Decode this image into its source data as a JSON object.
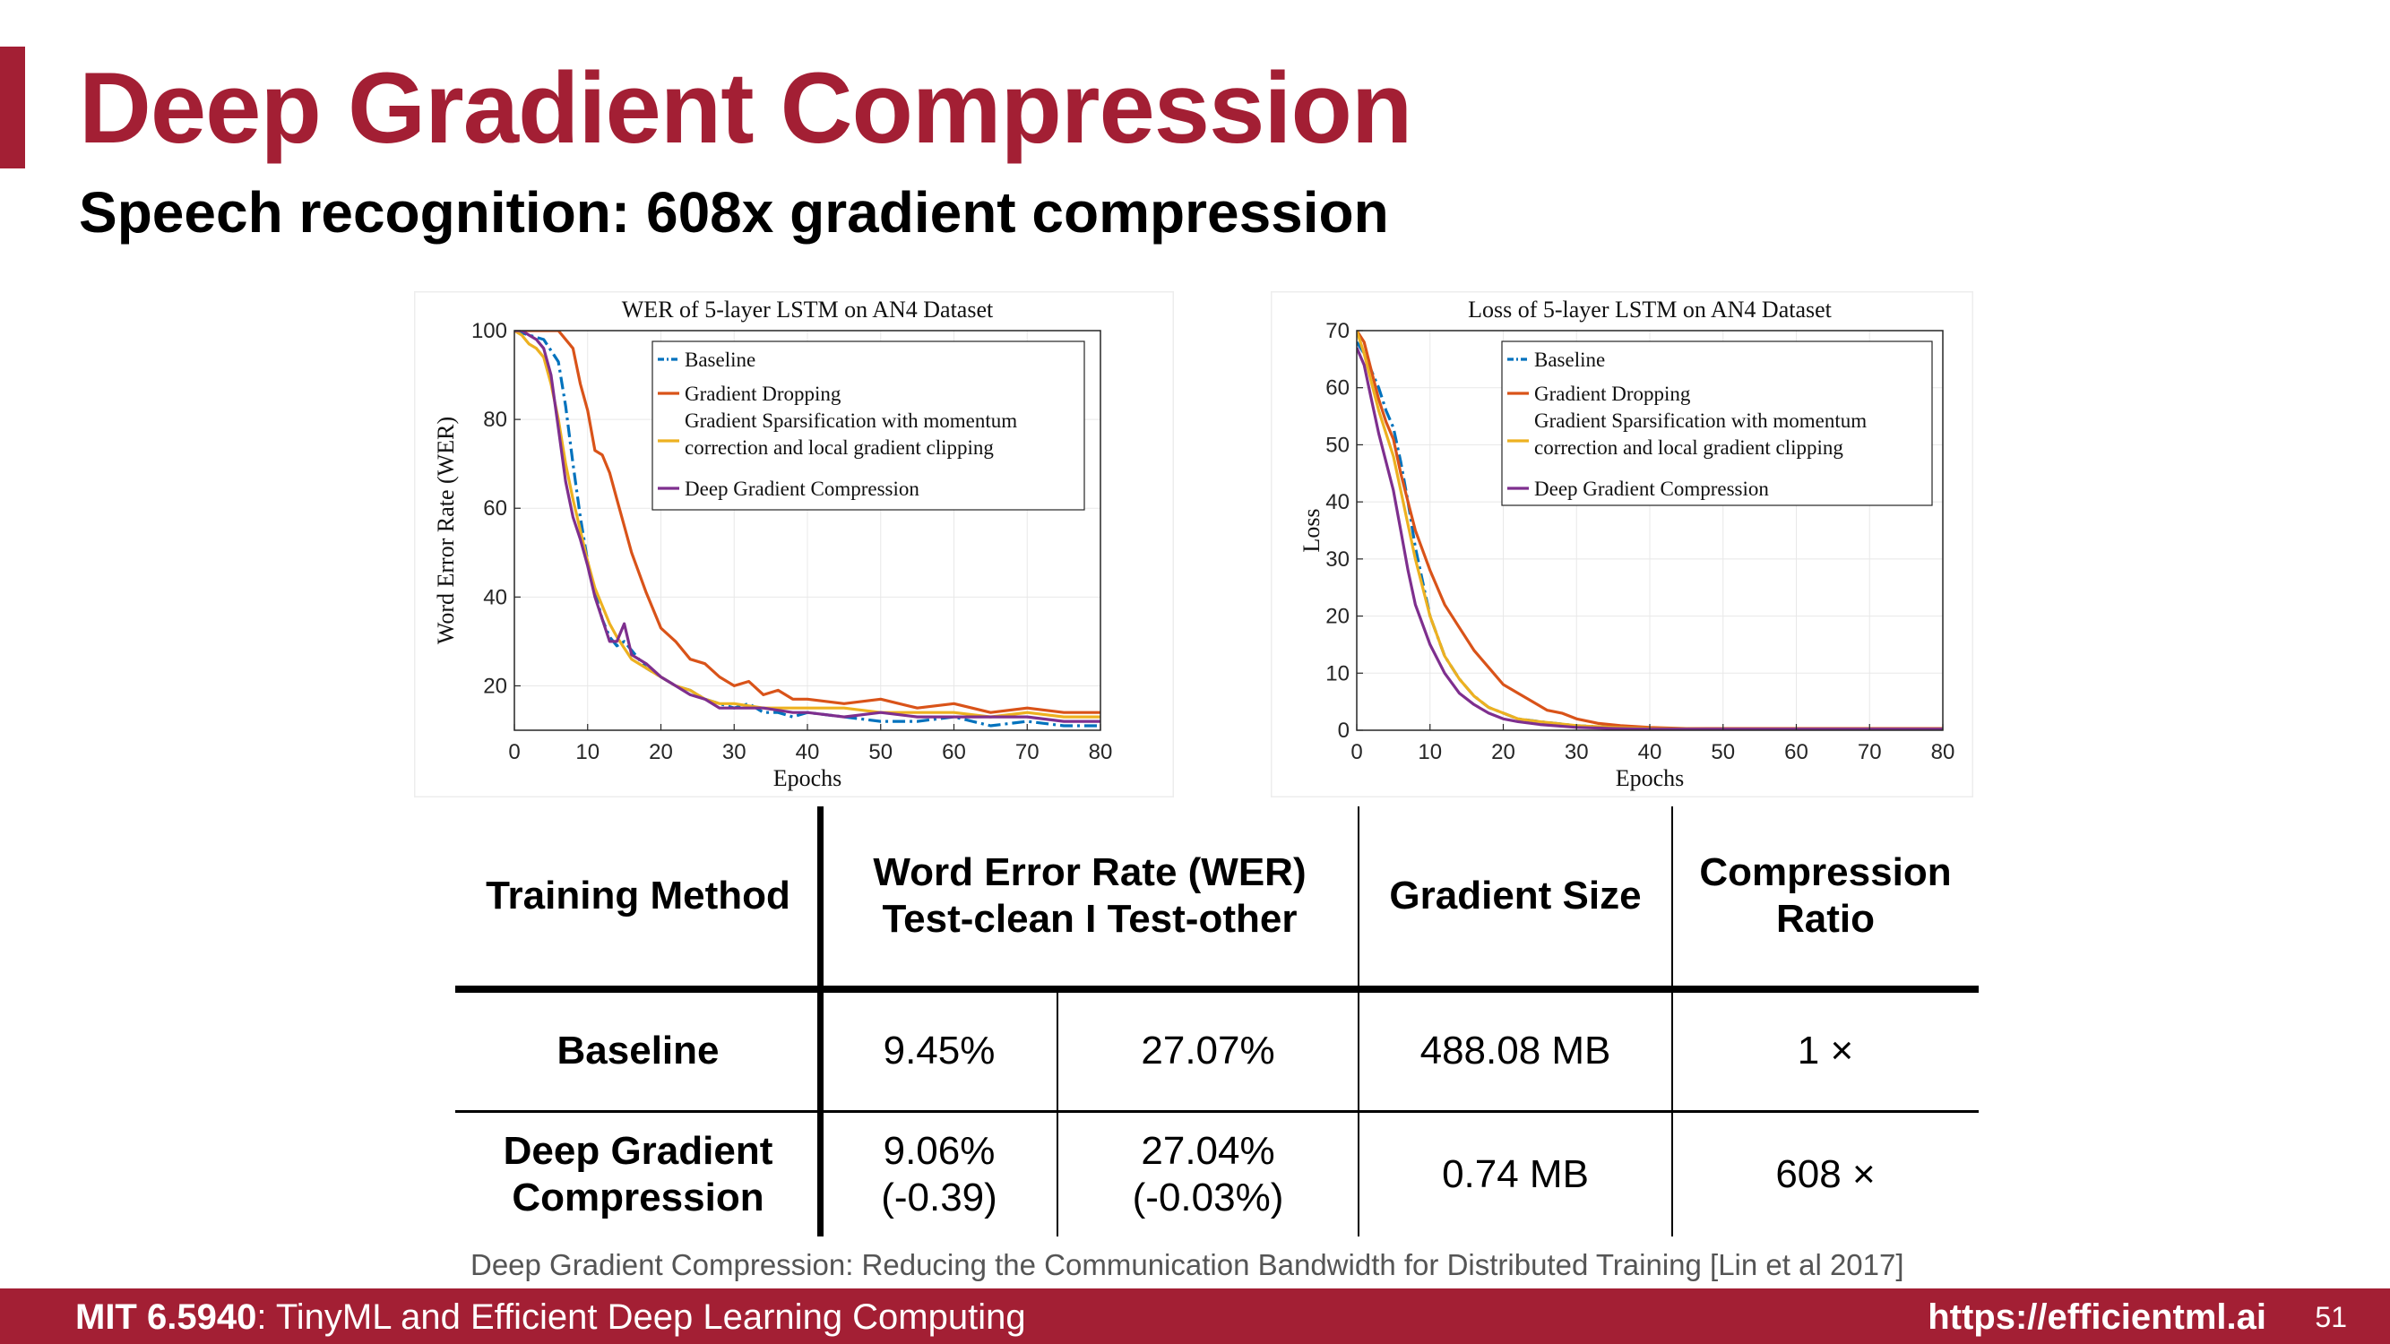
{
  "slide": {
    "title": "Deep Gradient Compression",
    "subtitle": "Speech recognition: 608x gradient compression",
    "citation": "Deep Gradient Compression: Reducing the Communication Bandwidth for Distributed Training [Lin et al 2017]",
    "footer": {
      "course_code": "MIT 6.5940",
      "course_name": ": TinyML and Efficient Deep Learning Computing",
      "url": "https://efficientml.ai",
      "page_number": "51"
    }
  },
  "colors": {
    "brand": "#a31f34",
    "baseline": "#0072bd",
    "gradient_dropping": "#d95319",
    "gradient_sparsification": "#edb120",
    "dgc": "#7e2f8e"
  },
  "table": {
    "headers": {
      "method": "Training Method",
      "wer_line1": "Word Error Rate (WER)",
      "wer_line2": "Test-clean I Test-other",
      "size": "Gradient Size",
      "ratio_line1": "Compression",
      "ratio_line2": "Ratio"
    },
    "rows": [
      {
        "method_line1": "Baseline",
        "method_line2": "",
        "clean_line1": "9.45%",
        "clean_line2": "",
        "other_line1": "27.07%",
        "other_line2": "",
        "size": "488.08 MB",
        "ratio": "1 ×"
      },
      {
        "method_line1": "Deep Gradient",
        "method_line2": "Compression",
        "clean_line1": "9.06%",
        "clean_line2": "(-0.39)",
        "other_line1": "27.04%",
        "other_line2": "(-0.03%)",
        "size": "0.74 MB",
        "ratio": "608 ×"
      }
    ]
  },
  "chart_data": [
    {
      "type": "line",
      "title": "WER of 5-layer LSTM on AN4 Dataset",
      "xlabel": "Epochs",
      "ylabel": "Word Error Rate (WER)",
      "xlim": [
        0,
        80
      ],
      "ylim": [
        10,
        100
      ],
      "xticks": [
        0,
        10,
        20,
        30,
        40,
        50,
        60,
        70,
        80
      ],
      "yticks": [
        20,
        40,
        60,
        80,
        100
      ],
      "grid": true,
      "legend_position": "top-right",
      "series": [
        {
          "name": "Baseline",
          "style": "dashdot",
          "color": "#0072bd",
          "x": [
            0,
            2,
            4,
            6,
            7,
            8,
            9,
            10,
            11,
            12,
            13,
            14,
            15,
            16,
            18,
            20,
            22,
            24,
            26,
            28,
            30,
            32,
            34,
            36,
            38,
            40,
            45,
            50,
            55,
            60,
            65,
            70,
            75,
            80
          ],
          "y": [
            100,
            99,
            98,
            93,
            83,
            70,
            58,
            48,
            41,
            35,
            31,
            29,
            30,
            28,
            24,
            22,
            20,
            19,
            17,
            16,
            15,
            16,
            14,
            14,
            13,
            14,
            13,
            12,
            12,
            13,
            11,
            12,
            11,
            11
          ]
        },
        {
          "name": "Gradient Dropping",
          "style": "solid",
          "color": "#d95319",
          "x": [
            0,
            2,
            4,
            6,
            8,
            9,
            10,
            11,
            12,
            13,
            14,
            15,
            16,
            18,
            20,
            22,
            24,
            26,
            28,
            30,
            32,
            34,
            36,
            38,
            40,
            45,
            50,
            55,
            60,
            65,
            70,
            75,
            80
          ],
          "y": [
            100,
            100,
            100,
            100,
            96,
            88,
            82,
            73,
            72,
            68,
            62,
            56,
            50,
            41,
            33,
            30,
            26,
            25,
            22,
            20,
            21,
            18,
            19,
            17,
            17,
            16,
            17,
            15,
            16,
            14,
            15,
            14,
            14
          ]
        },
        {
          "name": "Gradient Sparsification with momentum correction and local gradient clipping",
          "style": "solid",
          "color": "#edb120",
          "x": [
            0,
            1,
            2,
            3,
            4,
            5,
            6,
            7,
            8,
            9,
            10,
            11,
            12,
            13,
            14,
            16,
            18,
            20,
            22,
            24,
            26,
            28,
            30,
            34,
            38,
            40,
            45,
            50,
            55,
            60,
            65,
            70,
            75,
            80
          ],
          "y": [
            100,
            99,
            97,
            96,
            94,
            88,
            80,
            70,
            62,
            55,
            48,
            42,
            38,
            34,
            31,
            26,
            24,
            22,
            20,
            19,
            17,
            16,
            16,
            15,
            15,
            15,
            15,
            14,
            14,
            14,
            13,
            14,
            13,
            13
          ]
        },
        {
          "name": "Deep Gradient Compression",
          "style": "solid",
          "color": "#7e2f8e",
          "x": [
            0,
            1,
            2,
            3,
            4,
            5,
            6,
            7,
            8,
            9,
            10,
            11,
            12,
            13,
            14,
            15,
            16,
            18,
            20,
            22,
            24,
            26,
            28,
            30,
            34,
            38,
            40,
            45,
            50,
            55,
            60,
            65,
            70,
            75,
            80
          ],
          "y": [
            100,
            100,
            99,
            98,
            96,
            90,
            78,
            66,
            58,
            53,
            47,
            40,
            35,
            30,
            30,
            34,
            27,
            25,
            22,
            20,
            18,
            17,
            15,
            15,
            15,
            14,
            14,
            13,
            14,
            13,
            13,
            13,
            13,
            12,
            12
          ]
        }
      ]
    },
    {
      "type": "line",
      "title": "Loss of 5-layer LSTM on AN4 Dataset",
      "xlabel": "Epochs",
      "ylabel": "Loss",
      "xlim": [
        0,
        80
      ],
      "ylim": [
        0,
        70
      ],
      "xticks": [
        0,
        10,
        20,
        30,
        40,
        50,
        60,
        70,
        80
      ],
      "yticks": [
        0,
        10,
        20,
        30,
        40,
        50,
        60,
        70
      ],
      "grid": true,
      "legend_position": "top-right",
      "series": [
        {
          "name": "Baseline",
          "style": "dashdot",
          "color": "#0072bd",
          "x": [
            0,
            1,
            2,
            3,
            4,
            5,
            6,
            7,
            8,
            10,
            12,
            14,
            16,
            18,
            20,
            22,
            25,
            30,
            35,
            40,
            50,
            60,
            70,
            80
          ],
          "y": [
            68,
            66,
            63,
            60,
            56,
            53,
            47,
            40,
            32,
            20,
            13,
            9,
            6,
            4,
            3,
            2,
            1.5,
            0.8,
            0.5,
            0.3,
            0.2,
            0.2,
            0.2,
            0.2
          ]
        },
        {
          "name": "Gradient Dropping",
          "style": "solid",
          "color": "#d95319",
          "x": [
            0,
            1,
            2,
            3,
            4,
            5,
            6,
            7,
            8,
            10,
            12,
            14,
            16,
            18,
            20,
            22,
            24,
            26,
            28,
            30,
            33,
            36,
            40,
            45,
            50,
            60,
            70,
            80
          ],
          "y": [
            70,
            68,
            63,
            58,
            54,
            51,
            45,
            40,
            35,
            28,
            22,
            18,
            14,
            11,
            8,
            6.5,
            5,
            3.5,
            3,
            2,
            1.2,
            0.8,
            0.5,
            0.3,
            0.3,
            0.3,
            0.3,
            0.3
          ]
        },
        {
          "name": "Gradient Sparsification with momentum correction and local gradient clipping",
          "style": "solid",
          "color": "#edb120",
          "x": [
            0,
            1,
            2,
            3,
            4,
            5,
            6,
            7,
            8,
            10,
            12,
            14,
            16,
            18,
            20,
            22,
            25,
            30,
            35,
            40,
            50,
            60,
            70,
            80
          ],
          "y": [
            70,
            66,
            61,
            56,
            52,
            48,
            42,
            36,
            30,
            20,
            13,
            9,
            6,
            4,
            3,
            2,
            1.5,
            0.8,
            0.5,
            0.3,
            0.2,
            0.2,
            0.2,
            0.2
          ]
        },
        {
          "name": "Deep Gradient Compression",
          "style": "solid",
          "color": "#7e2f8e",
          "x": [
            0,
            1,
            2,
            3,
            4,
            5,
            6,
            7,
            8,
            10,
            12,
            14,
            16,
            18,
            20,
            22,
            25,
            30,
            35,
            40,
            50,
            60,
            70,
            80
          ],
          "y": [
            67,
            64,
            58,
            52,
            47,
            42,
            35,
            28,
            22,
            15,
            10,
            6.5,
            4.5,
            3,
            2,
            1.5,
            1,
            0.5,
            0.3,
            0.2,
            0.2,
            0.2,
            0.2,
            0.2
          ]
        }
      ]
    }
  ]
}
